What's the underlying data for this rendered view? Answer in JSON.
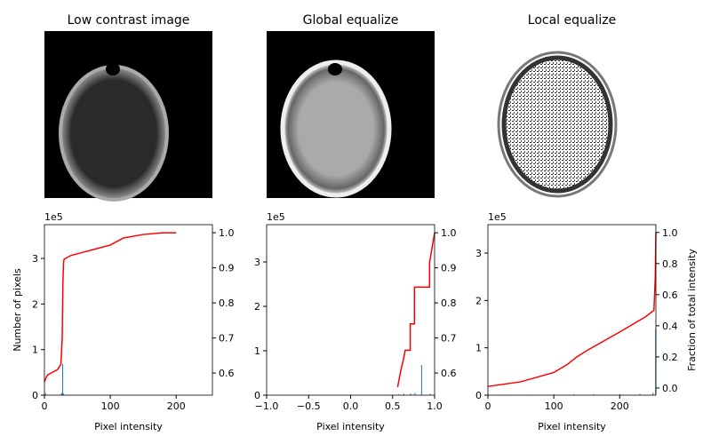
{
  "chart_data": [
    {
      "type": "histogram",
      "title": "Low contrast image",
      "xlabel": "Pixel intensity",
      "ylabel": "Number of pixels",
      "y_offset_label": "1e5",
      "xlim": [
        0,
        255
      ],
      "xticks": [
        0,
        100,
        200
      ],
      "ylim": [
        0,
        3.74
      ],
      "yticks": [
        0,
        1,
        2,
        3
      ],
      "y2lim": [
        0.537,
        1.023
      ],
      "y2ticks": [
        0.6,
        0.7,
        0.8,
        0.9,
        {
          "value": 1,
          "label": "1.0"
        }
      ],
      "hist": {
        "color": "#1f77b4",
        "x": [
          1,
          25,
          26,
          27,
          28
        ],
        "values": [
          0.05,
          0.03,
          0.05,
          0.68,
          0.04
        ]
      },
      "cdf": {
        "color": "#ff0000",
        "axis": "y2",
        "x": [
          0,
          2,
          5,
          10,
          20,
          25,
          27,
          28,
          29,
          30,
          40,
          60,
          80,
          100,
          110,
          120,
          150,
          180,
          200
        ],
        "values": [
          0.575,
          0.585,
          0.595,
          0.6,
          0.61,
          0.625,
          0.7,
          0.85,
          0.915,
          0.925,
          0.935,
          0.945,
          0.955,
          0.965,
          0.975,
          0.985,
          0.995,
          1.0,
          1.0
        ]
      }
    },
    {
      "type": "histogram",
      "title": "Global equalize",
      "xlabel": "Pixel intensity",
      "y_offset_label": "1e5",
      "xlim": [
        -1,
        1
      ],
      "xticks": [
        {
          "value": -1,
          "label": "−1.0"
        },
        {
          "value": -0.5,
          "label": "−0.5"
        },
        {
          "value": 0,
          "label": "0.0"
        },
        {
          "value": 0.5,
          "label": "0.5"
        },
        {
          "value": 1,
          "label": "1.0"
        }
      ],
      "ylim": [
        0,
        3.84
      ],
      "yticks": [
        0,
        1,
        2,
        3
      ],
      "y2lim": [
        0.537,
        1.023
      ],
      "y2ticks": [
        0.6,
        0.7,
        0.8,
        0.9,
        {
          "value": 1,
          "label": "1.0"
        }
      ],
      "hist": {
        "color": "#1f77b4",
        "x": [
          0.57,
          0.63,
          0.71,
          0.76,
          0.84,
          0.94
        ],
        "values": [
          0.02,
          0.03,
          0.04,
          0.05,
          0.68,
          0.03
        ]
      },
      "cdf": {
        "color": "#ff0000",
        "axis": "y2",
        "x": [
          0.56,
          0.6,
          0.63,
          0.65,
          0.71,
          0.71,
          0.76,
          0.76,
          0.83,
          0.83,
          0.94,
          0.94,
          1.0
        ],
        "values": [
          0.56,
          0.61,
          0.64,
          0.665,
          0.665,
          0.74,
          0.74,
          0.845,
          0.845,
          0.845,
          0.845,
          0.915,
          1.0
        ]
      }
    },
    {
      "type": "histogram",
      "title": "Local equalize",
      "xlabel": "Pixel intensity",
      "y2label": "Fraction of total intensity",
      "y_offset_label": "1e5",
      "xlim": [
        0,
        255
      ],
      "xticks": [
        0,
        100,
        200
      ],
      "ylim": [
        0,
        3.6
      ],
      "yticks": [
        0,
        1,
        2,
        3
      ],
      "y2lim": [
        -0.046,
        1.05
      ],
      "y2ticks": [
        {
          "value": 0,
          "label": "0.0"
        },
        0.2,
        0.4,
        0.6,
        0.8,
        {
          "value": 1,
          "label": "1.0"
        }
      ],
      "hist": {
        "color": "#1f77b4",
        "x": [
          20,
          60,
          100,
          130,
          160,
          200,
          230,
          250,
          254
        ],
        "values": [
          0.01,
          0.01,
          0.02,
          0.02,
          0.02,
          0.02,
          0.03,
          0.05,
          1.4
        ]
      },
      "cdf": {
        "color": "#ff0000",
        "axis": "y2",
        "x": [
          0,
          50,
          100,
          120,
          135,
          150,
          200,
          240,
          252,
          254,
          255
        ],
        "values": [
          0.01,
          0.04,
          0.1,
          0.15,
          0.2,
          0.24,
          0.36,
          0.46,
          0.5,
          0.7,
          1.0
        ]
      }
    }
  ]
}
